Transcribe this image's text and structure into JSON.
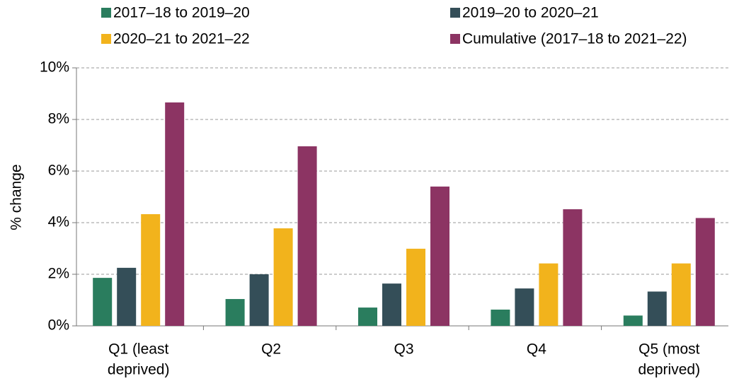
{
  "chart_data": {
    "type": "bar",
    "ylabel": "% change",
    "categories": [
      [
        "Q1 (least",
        "deprived)"
      ],
      [
        "Q2"
      ],
      [
        "Q3"
      ],
      [
        "Q4"
      ],
      [
        "Q5 (most",
        "deprived)"
      ]
    ],
    "series": [
      {
        "name": "2017–18 to 2019–20",
        "color": "#2a7d5e",
        "values": [
          1.86,
          1.04,
          0.71,
          0.63,
          0.4
        ]
      },
      {
        "name": "2019–20 to 2020–21",
        "color": "#344e58",
        "values": [
          2.25,
          2.0,
          1.64,
          1.45,
          1.33
        ]
      },
      {
        "name": "2020–21 to 2021–22",
        "color": "#f2b31c",
        "values": [
          4.33,
          3.78,
          2.99,
          2.42,
          2.42
        ]
      },
      {
        "name": "Cumulative (2017–18 to 2021–22)",
        "color": "#8c3463",
        "values": [
          8.66,
          6.96,
          5.4,
          4.52,
          4.18
        ]
      }
    ],
    "ylim": [
      0,
      10
    ],
    "yticks": [
      {
        "value": 0,
        "label": "0%"
      },
      {
        "value": 2,
        "label": "2%"
      },
      {
        "value": 4,
        "label": "4%"
      },
      {
        "value": 6,
        "label": "6%"
      },
      {
        "value": 8,
        "label": "8%"
      },
      {
        "value": 10,
        "label": "10%"
      }
    ],
    "grid": true
  }
}
